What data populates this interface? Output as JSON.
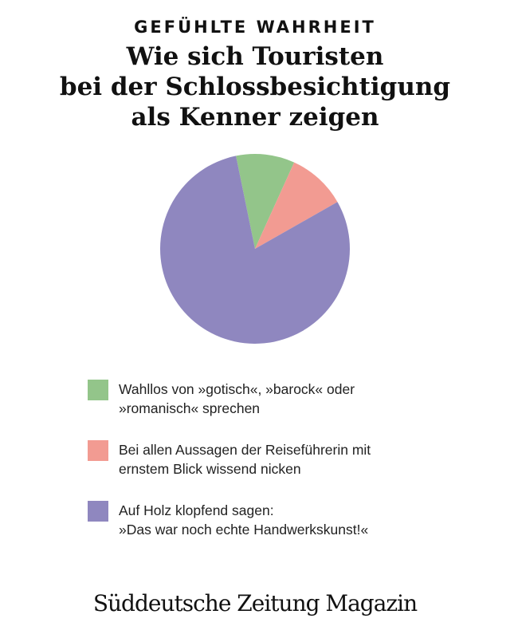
{
  "kicker": "GEFÜHLTE WAHRHEIT",
  "title": "Wie sich Touristen\nbei der Schlossbesichtigung\nals Kenner zeigen",
  "chart_data": {
    "type": "pie",
    "title": "Wie sich Touristen bei der Schlossbesichtigung als Kenner zeigen",
    "categories": [
      "Wahllos von »gotisch«, »barock« oder »romanisch« sprechen",
      "Bei allen Aussagen der Reiseführerin mit ernstem Blick wissend nicken",
      "Auf Holz klopfend sagen: »Das war noch echte Handwerkskunst!«"
    ],
    "values": [
      10,
      10,
      80
    ],
    "colors": [
      "#93c58a",
      "#f29b92",
      "#8f87bf"
    ],
    "legend_position": "bottom"
  },
  "legend": [
    {
      "label": "Wahllos von »gotisch«, »barock« oder\n»romanisch« sprechen",
      "color": "#93c58a"
    },
    {
      "label": "Bei allen Aussagen der Reiseführerin mit\nernstem Blick wissend nicken",
      "color": "#f29b92"
    },
    {
      "label": "Auf Holz klopfend sagen:\n»Das war noch echte Handwerkskunst!«",
      "color": "#8f87bf"
    }
  ],
  "logo": "Süddeutsche Zeitung Magazin"
}
